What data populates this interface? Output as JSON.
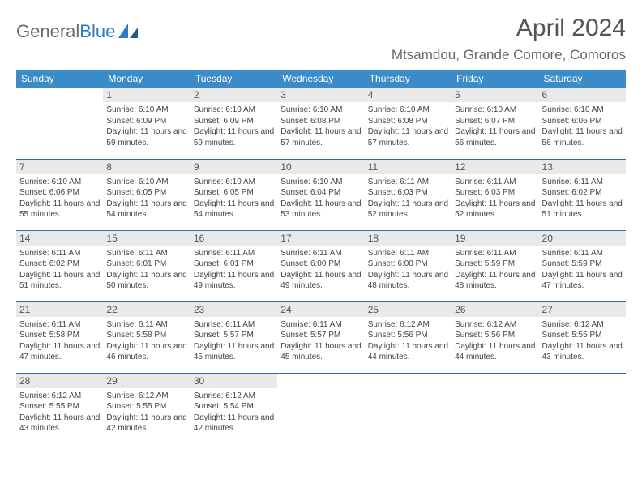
{
  "logo": {
    "text1": "General",
    "text2": "Blue"
  },
  "title": "April 2024",
  "location": "Mtsamdou, Grande Comore, Comoros",
  "colors": {
    "header_bg": "#3b8bc8",
    "header_fg": "#ffffff",
    "row_border": "#2b6fa8",
    "daynum_bg": "#e9e9e9",
    "title_color": "#555555",
    "location_color": "#666666",
    "logo_blue": "#2b7bbf",
    "logo_gray": "#6b6b6b"
  },
  "weekdays": [
    "Sunday",
    "Monday",
    "Tuesday",
    "Wednesday",
    "Thursday",
    "Friday",
    "Saturday"
  ],
  "weeks": [
    [
      null,
      {
        "d": "1",
        "sr": "6:10 AM",
        "ss": "6:09 PM",
        "dl": "11 hours and 59 minutes."
      },
      {
        "d": "2",
        "sr": "6:10 AM",
        "ss": "6:09 PM",
        "dl": "11 hours and 59 minutes."
      },
      {
        "d": "3",
        "sr": "6:10 AM",
        "ss": "6:08 PM",
        "dl": "11 hours and 57 minutes."
      },
      {
        "d": "4",
        "sr": "6:10 AM",
        "ss": "6:08 PM",
        "dl": "11 hours and 57 minutes."
      },
      {
        "d": "5",
        "sr": "6:10 AM",
        "ss": "6:07 PM",
        "dl": "11 hours and 56 minutes."
      },
      {
        "d": "6",
        "sr": "6:10 AM",
        "ss": "6:06 PM",
        "dl": "11 hours and 56 minutes."
      }
    ],
    [
      {
        "d": "7",
        "sr": "6:10 AM",
        "ss": "6:06 PM",
        "dl": "11 hours and 55 minutes."
      },
      {
        "d": "8",
        "sr": "6:10 AM",
        "ss": "6:05 PM",
        "dl": "11 hours and 54 minutes."
      },
      {
        "d": "9",
        "sr": "6:10 AM",
        "ss": "6:05 PM",
        "dl": "11 hours and 54 minutes."
      },
      {
        "d": "10",
        "sr": "6:10 AM",
        "ss": "6:04 PM",
        "dl": "11 hours and 53 minutes."
      },
      {
        "d": "11",
        "sr": "6:11 AM",
        "ss": "6:03 PM",
        "dl": "11 hours and 52 minutes."
      },
      {
        "d": "12",
        "sr": "6:11 AM",
        "ss": "6:03 PM",
        "dl": "11 hours and 52 minutes."
      },
      {
        "d": "13",
        "sr": "6:11 AM",
        "ss": "6:02 PM",
        "dl": "11 hours and 51 minutes."
      }
    ],
    [
      {
        "d": "14",
        "sr": "6:11 AM",
        "ss": "6:02 PM",
        "dl": "11 hours and 51 minutes."
      },
      {
        "d": "15",
        "sr": "6:11 AM",
        "ss": "6:01 PM",
        "dl": "11 hours and 50 minutes."
      },
      {
        "d": "16",
        "sr": "6:11 AM",
        "ss": "6:01 PM",
        "dl": "11 hours and 49 minutes."
      },
      {
        "d": "17",
        "sr": "6:11 AM",
        "ss": "6:00 PM",
        "dl": "11 hours and 49 minutes."
      },
      {
        "d": "18",
        "sr": "6:11 AM",
        "ss": "6:00 PM",
        "dl": "11 hours and 48 minutes."
      },
      {
        "d": "19",
        "sr": "6:11 AM",
        "ss": "5:59 PM",
        "dl": "11 hours and 48 minutes."
      },
      {
        "d": "20",
        "sr": "6:11 AM",
        "ss": "5:59 PM",
        "dl": "11 hours and 47 minutes."
      }
    ],
    [
      {
        "d": "21",
        "sr": "6:11 AM",
        "ss": "5:58 PM",
        "dl": "11 hours and 47 minutes."
      },
      {
        "d": "22",
        "sr": "6:11 AM",
        "ss": "5:58 PM",
        "dl": "11 hours and 46 minutes."
      },
      {
        "d": "23",
        "sr": "6:11 AM",
        "ss": "5:57 PM",
        "dl": "11 hours and 45 minutes."
      },
      {
        "d": "24",
        "sr": "6:11 AM",
        "ss": "5:57 PM",
        "dl": "11 hours and 45 minutes."
      },
      {
        "d": "25",
        "sr": "6:12 AM",
        "ss": "5:56 PM",
        "dl": "11 hours and 44 minutes."
      },
      {
        "d": "26",
        "sr": "6:12 AM",
        "ss": "5:56 PM",
        "dl": "11 hours and 44 minutes."
      },
      {
        "d": "27",
        "sr": "6:12 AM",
        "ss": "5:55 PM",
        "dl": "11 hours and 43 minutes."
      }
    ],
    [
      {
        "d": "28",
        "sr": "6:12 AM",
        "ss": "5:55 PM",
        "dl": "11 hours and 43 minutes."
      },
      {
        "d": "29",
        "sr": "6:12 AM",
        "ss": "5:55 PM",
        "dl": "11 hours and 42 minutes."
      },
      {
        "d": "30",
        "sr": "6:12 AM",
        "ss": "5:54 PM",
        "dl": "11 hours and 42 minutes."
      },
      null,
      null,
      null,
      null
    ]
  ],
  "labels": {
    "sunrise": "Sunrise:",
    "sunset": "Sunset:",
    "daylight": "Daylight:"
  }
}
